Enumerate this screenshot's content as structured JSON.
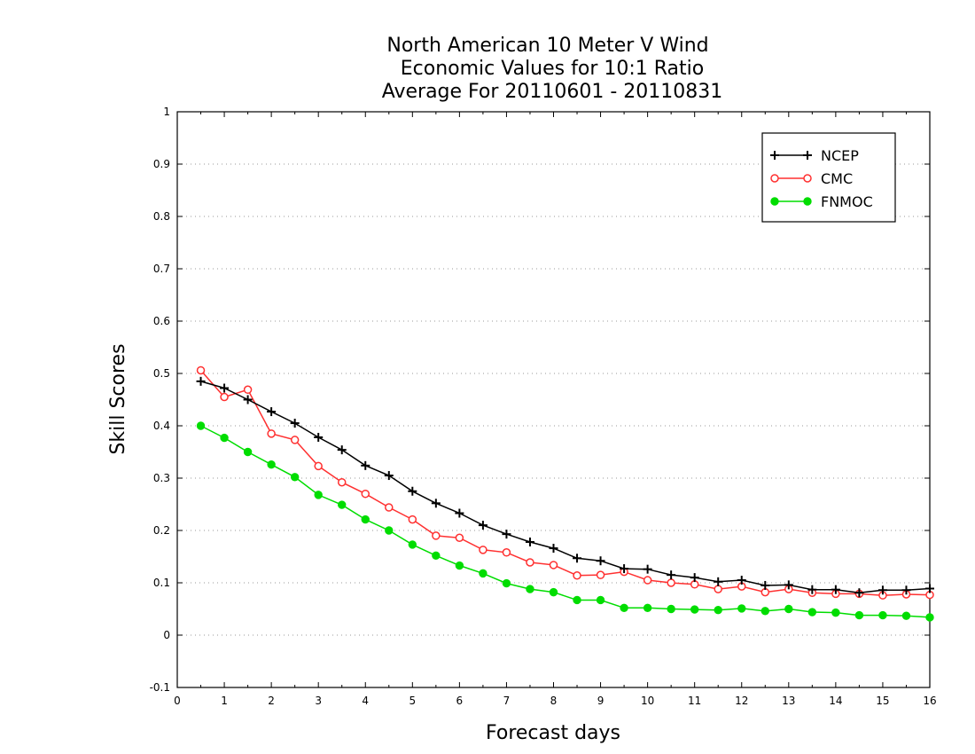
{
  "chart_data": {
    "type": "line",
    "title_lines": [
      "North American 10 Meter V Wind",
      "Economic Values for 10:1 Ratio",
      "Average For 20110601 - 20110831"
    ],
    "xlabel": "Forecast days",
    "ylabel": "Skill Scores",
    "xlim": [
      0,
      16
    ],
    "ylim": [
      -0.1,
      1
    ],
    "xticks": [
      0,
      1,
      2,
      3,
      4,
      5,
      6,
      7,
      8,
      9,
      10,
      11,
      12,
      13,
      14,
      15,
      16
    ],
    "yticks": [
      -0.1,
      0,
      0.1,
      0.2,
      0.3,
      0.4,
      0.5,
      0.6,
      0.7,
      0.8,
      0.9,
      1
    ],
    "ytick_labels": [
      "-0.1",
      "0",
      "0.1",
      "0.2",
      "0.3",
      "0.4",
      "0.5",
      "0.6",
      "0.7",
      "0.8",
      "0.9",
      "1"
    ],
    "grid": "horizontal dotted",
    "legend_position": "top-right",
    "x": [
      0.5,
      1,
      1.5,
      2,
      2.5,
      3,
      3.5,
      4,
      4.5,
      5,
      5.5,
      6,
      6.5,
      7,
      7.5,
      8,
      8.5,
      9,
      9.5,
      10,
      10.5,
      11,
      11.5,
      12,
      12.5,
      13,
      13.5,
      14,
      14.5,
      15,
      15.5,
      16
    ],
    "series": [
      {
        "name": "NCEP",
        "color": "#000000",
        "marker": "plus",
        "values": [
          0.485,
          0.472,
          0.45,
          0.427,
          0.405,
          0.378,
          0.354,
          0.324,
          0.305,
          0.275,
          0.252,
          0.233,
          0.21,
          0.193,
          0.178,
          0.166,
          0.147,
          0.142,
          0.127,
          0.126,
          0.115,
          0.11,
          0.102,
          0.105,
          0.095,
          0.096,
          0.087,
          0.087,
          0.081,
          0.086,
          0.086,
          0.089
        ]
      },
      {
        "name": "CMC",
        "color": "#ff3030",
        "marker": "open-circle",
        "values": [
          0.506,
          0.455,
          0.469,
          0.385,
          0.373,
          0.323,
          0.292,
          0.27,
          0.244,
          0.221,
          0.19,
          0.186,
          0.163,
          0.158,
          0.139,
          0.134,
          0.114,
          0.115,
          0.121,
          0.105,
          0.1,
          0.097,
          0.088,
          0.093,
          0.082,
          0.088,
          0.081,
          0.079,
          0.079,
          0.076,
          0.078,
          0.077
        ]
      },
      {
        "name": "FNMOC",
        "color": "#00dd00",
        "marker": "filled-circle",
        "values": [
          0.4,
          0.377,
          0.35,
          0.326,
          0.302,
          0.268,
          0.249,
          0.221,
          0.2,
          0.173,
          0.152,
          0.133,
          0.118,
          0.099,
          0.088,
          0.082,
          0.067,
          0.067,
          0.052,
          0.052,
          0.05,
          0.049,
          0.048,
          0.051,
          0.046,
          0.05,
          0.044,
          0.043,
          0.038,
          0.038,
          0.037,
          0.034
        ]
      }
    ]
  }
}
